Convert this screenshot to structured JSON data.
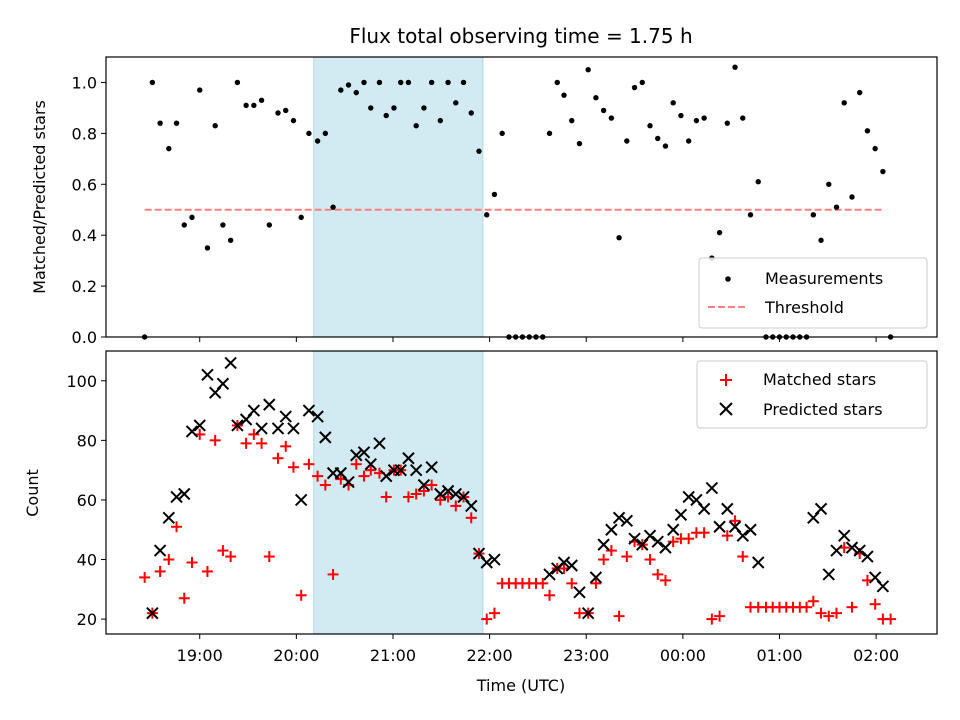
{
  "chart_data": {
    "type": "scatter",
    "title": "Flux total observing time = 1.75 h",
    "xlabel": "Time (UTC)",
    "x_ticks": [
      "19:00",
      "20:00",
      "21:00",
      "22:00",
      "23:00",
      "00:00",
      "01:00",
      "02:00"
    ],
    "x_tick_hours": [
      19,
      20,
      21,
      22,
      23,
      24,
      25,
      26
    ],
    "x_range_hours": [
      18.03,
      26.63
    ],
    "observing_window_hours": [
      20.18,
      21.93
    ],
    "colors": {
      "measurement": "#000000",
      "threshold": "#ff7f7f",
      "matched": "#ff0000",
      "predicted": "#000000",
      "window": "#add8e6"
    },
    "top": {
      "ylabel": "Matched/Predicted stars",
      "ylim": [
        0,
        1.1
      ],
      "yticks": [
        "0.0",
        "0.2",
        "0.4",
        "0.6",
        "0.8",
        "1.0"
      ],
      "ytick_values": [
        0,
        0.2,
        0.4,
        0.6,
        0.8,
        1.0
      ],
      "threshold": 0.5,
      "threshold_x": [
        18.43,
        26.09
      ],
      "legend": {
        "measurements": "Measurements",
        "threshold": "Threshold"
      },
      "points": [
        [
          18.43,
          0.0
        ],
        [
          18.51,
          1.0
        ],
        [
          18.59,
          0.84
        ],
        [
          18.68,
          0.74
        ],
        [
          18.76,
          0.84
        ],
        [
          18.84,
          0.44
        ],
        [
          18.92,
          0.47
        ],
        [
          19.0,
          0.97
        ],
        [
          19.08,
          0.35
        ],
        [
          19.16,
          0.83
        ],
        [
          19.24,
          0.44
        ],
        [
          19.32,
          0.38
        ],
        [
          19.39,
          1.0
        ],
        [
          19.48,
          0.91
        ],
        [
          19.56,
          0.91
        ],
        [
          19.64,
          0.93
        ],
        [
          19.72,
          0.44
        ],
        [
          19.81,
          0.88
        ],
        [
          19.89,
          0.89
        ],
        [
          19.97,
          0.85
        ],
        [
          20.05,
          0.47
        ],
        [
          20.13,
          0.8
        ],
        [
          20.22,
          0.77
        ],
        [
          20.3,
          0.8
        ],
        [
          20.38,
          0.51
        ],
        [
          20.46,
          0.97
        ],
        [
          20.54,
          0.99
        ],
        [
          20.62,
          0.96
        ],
        [
          20.7,
          1.0
        ],
        [
          20.77,
          0.9
        ],
        [
          20.86,
          1.0
        ],
        [
          20.93,
          0.87
        ],
        [
          21.01,
          0.9
        ],
        [
          21.08,
          1.0
        ],
        [
          21.16,
          1.0
        ],
        [
          21.24,
          0.83
        ],
        [
          21.32,
          0.9
        ],
        [
          21.4,
          1.0
        ],
        [
          21.49,
          0.85
        ],
        [
          21.57,
          1.0
        ],
        [
          21.65,
          0.92
        ],
        [
          21.73,
          1.0
        ],
        [
          21.81,
          0.88
        ],
        [
          21.89,
          0.73
        ],
        [
          21.97,
          0.48
        ],
        [
          22.05,
          0.56
        ],
        [
          22.13,
          0.8
        ],
        [
          22.2,
          0.0
        ],
        [
          22.27,
          0.0
        ],
        [
          22.34,
          0.0
        ],
        [
          22.41,
          0.0
        ],
        [
          22.48,
          0.0
        ],
        [
          22.55,
          0.0
        ],
        [
          22.62,
          0.8
        ],
        [
          22.7,
          1.0
        ],
        [
          22.77,
          0.95
        ],
        [
          22.85,
          0.85
        ],
        [
          22.93,
          0.76
        ],
        [
          23.02,
          1.05
        ],
        [
          23.1,
          0.94
        ],
        [
          23.18,
          0.89
        ],
        [
          23.26,
          0.86
        ],
        [
          23.34,
          0.39
        ],
        [
          23.42,
          0.77
        ],
        [
          23.5,
          0.98
        ],
        [
          23.58,
          1.0
        ],
        [
          23.66,
          0.83
        ],
        [
          23.74,
          0.78
        ],
        [
          23.82,
          0.75
        ],
        [
          23.9,
          0.92
        ],
        [
          23.98,
          0.87
        ],
        [
          24.06,
          0.77
        ],
        [
          24.14,
          0.85
        ],
        [
          24.22,
          0.86
        ],
        [
          24.3,
          0.31
        ],
        [
          24.38,
          0.41
        ],
        [
          24.46,
          0.84
        ],
        [
          24.54,
          1.06
        ],
        [
          24.62,
          0.86
        ],
        [
          24.7,
          0.48
        ],
        [
          24.78,
          0.61
        ],
        [
          24.86,
          0.0
        ],
        [
          24.93,
          0.0
        ],
        [
          25.0,
          0.0
        ],
        [
          25.07,
          0.0
        ],
        [
          25.14,
          0.0
        ],
        [
          25.21,
          0.0
        ],
        [
          25.28,
          0.0
        ],
        [
          25.35,
          0.48
        ],
        [
          25.43,
          0.38
        ],
        [
          25.51,
          0.6
        ],
        [
          25.59,
          0.51
        ],
        [
          25.67,
          0.92
        ],
        [
          25.75,
          0.55
        ],
        [
          25.83,
          0.96
        ],
        [
          25.91,
          0.81
        ],
        [
          25.99,
          0.74
        ],
        [
          26.07,
          0.65
        ],
        [
          26.15,
          0.0
        ]
      ]
    },
    "bottom": {
      "ylabel": "Count",
      "ylim": [
        15,
        110
      ],
      "yticks": [
        "20",
        "40",
        "60",
        "80",
        "100"
      ],
      "ytick_values": [
        20,
        40,
        60,
        80,
        100
      ],
      "legend": {
        "matched": "Matched stars",
        "predicted": "Predicted stars"
      },
      "matched": [
        [
          18.43,
          34
        ],
        [
          18.51,
          22
        ],
        [
          18.59,
          36
        ],
        [
          18.68,
          40
        ],
        [
          18.76,
          51
        ],
        [
          18.84,
          27
        ],
        [
          18.92,
          39
        ],
        [
          19.0,
          82
        ],
        [
          19.08,
          36
        ],
        [
          19.16,
          80
        ],
        [
          19.24,
          43
        ],
        [
          19.32,
          41
        ],
        [
          19.39,
          85
        ],
        [
          19.48,
          79
        ],
        [
          19.56,
          82
        ],
        [
          19.64,
          79
        ],
        [
          19.72,
          41
        ],
        [
          19.81,
          74
        ],
        [
          19.89,
          78
        ],
        [
          19.97,
          71
        ],
        [
          20.05,
          28
        ],
        [
          20.13,
          72
        ],
        [
          20.22,
          68
        ],
        [
          20.3,
          65
        ],
        [
          20.38,
          35
        ],
        [
          20.46,
          67
        ],
        [
          20.54,
          65
        ],
        [
          20.62,
          72
        ],
        [
          20.7,
          68
        ],
        [
          20.77,
          70
        ],
        [
          20.86,
          69
        ],
        [
          20.93,
          61
        ],
        [
          21.01,
          70
        ],
        [
          21.08,
          70
        ],
        [
          21.16,
          61
        ],
        [
          21.24,
          62
        ],
        [
          21.32,
          63
        ],
        [
          21.4,
          65
        ],
        [
          21.49,
          60
        ],
        [
          21.57,
          61
        ],
        [
          21.65,
          58
        ],
        [
          21.73,
          61
        ],
        [
          21.81,
          54
        ],
        [
          21.89,
          42
        ],
        [
          21.97,
          20
        ],
        [
          22.05,
          22
        ],
        [
          22.13,
          32
        ],
        [
          22.2,
          32
        ],
        [
          22.27,
          32
        ],
        [
          22.34,
          32
        ],
        [
          22.41,
          32
        ],
        [
          22.48,
          32
        ],
        [
          22.55,
          32
        ],
        [
          22.62,
          28
        ],
        [
          22.7,
          37
        ],
        [
          22.77,
          37
        ],
        [
          22.85,
          32
        ],
        [
          22.93,
          22
        ],
        [
          23.02,
          22
        ],
        [
          23.1,
          32
        ],
        [
          23.18,
          40
        ],
        [
          23.26,
          43
        ],
        [
          23.34,
          21
        ],
        [
          23.42,
          41
        ],
        [
          23.5,
          46
        ],
        [
          23.58,
          45
        ],
        [
          23.66,
          40
        ],
        [
          23.74,
          35
        ],
        [
          23.82,
          33
        ],
        [
          23.9,
          46
        ],
        [
          23.98,
          47
        ],
        [
          24.06,
          47
        ],
        [
          24.14,
          49
        ],
        [
          24.22,
          49
        ],
        [
          24.3,
          20
        ],
        [
          24.38,
          21
        ],
        [
          24.46,
          48
        ],
        [
          24.54,
          53
        ],
        [
          24.62,
          41
        ],
        [
          24.7,
          24
        ],
        [
          24.78,
          24
        ],
        [
          24.86,
          24
        ],
        [
          24.93,
          24
        ],
        [
          25.0,
          24
        ],
        [
          25.07,
          24
        ],
        [
          25.14,
          24
        ],
        [
          25.21,
          24
        ],
        [
          25.28,
          24
        ],
        [
          25.35,
          26
        ],
        [
          25.43,
          22
        ],
        [
          25.51,
          21
        ],
        [
          25.59,
          22
        ],
        [
          25.67,
          44
        ],
        [
          25.75,
          24
        ],
        [
          25.83,
          42
        ],
        [
          25.91,
          33
        ],
        [
          25.99,
          25
        ],
        [
          26.07,
          20
        ],
        [
          26.15,
          20
        ]
      ],
      "predicted": [
        [
          18.51,
          22
        ],
        [
          18.59,
          43
        ],
        [
          18.68,
          54
        ],
        [
          18.76,
          61
        ],
        [
          18.84,
          62
        ],
        [
          18.92,
          83
        ],
        [
          19.0,
          85
        ],
        [
          19.08,
          102
        ],
        [
          19.16,
          96
        ],
        [
          19.24,
          99
        ],
        [
          19.32,
          106
        ],
        [
          19.39,
          85
        ],
        [
          19.48,
          87
        ],
        [
          19.56,
          90
        ],
        [
          19.64,
          84
        ],
        [
          19.72,
          92
        ],
        [
          19.81,
          84
        ],
        [
          19.89,
          88
        ],
        [
          19.97,
          84
        ],
        [
          20.05,
          60
        ],
        [
          20.13,
          90
        ],
        [
          20.22,
          88
        ],
        [
          20.3,
          81
        ],
        [
          20.38,
          69
        ],
        [
          20.46,
          69
        ],
        [
          20.54,
          66
        ],
        [
          20.62,
          75
        ],
        [
          20.7,
          76
        ],
        [
          20.77,
          72
        ],
        [
          20.86,
          79
        ],
        [
          20.93,
          68
        ],
        [
          21.01,
          70
        ],
        [
          21.08,
          70
        ],
        [
          21.16,
          74
        ],
        [
          21.24,
          70
        ],
        [
          21.32,
          65
        ],
        [
          21.4,
          71
        ],
        [
          21.49,
          62
        ],
        [
          21.57,
          63
        ],
        [
          21.65,
          62
        ],
        [
          21.73,
          61
        ],
        [
          21.81,
          58
        ],
        [
          21.89,
          42
        ],
        [
          21.97,
          39
        ],
        [
          22.05,
          40
        ],
        [
          22.62,
          35
        ],
        [
          22.7,
          37
        ],
        [
          22.77,
          39
        ],
        [
          22.85,
          38
        ],
        [
          22.93,
          29
        ],
        [
          23.02,
          22
        ],
        [
          23.1,
          34
        ],
        [
          23.18,
          45
        ],
        [
          23.26,
          50
        ],
        [
          23.34,
          54
        ],
        [
          23.42,
          53
        ],
        [
          23.5,
          47
        ],
        [
          23.58,
          45
        ],
        [
          23.66,
          48
        ],
        [
          23.74,
          46
        ],
        [
          23.82,
          44
        ],
        [
          23.9,
          50
        ],
        [
          23.98,
          55
        ],
        [
          24.06,
          61
        ],
        [
          24.14,
          60
        ],
        [
          24.22,
          57
        ],
        [
          24.3,
          64
        ],
        [
          24.38,
          51
        ],
        [
          24.46,
          57
        ],
        [
          24.54,
          51
        ],
        [
          24.62,
          48
        ],
        [
          24.7,
          50
        ],
        [
          24.78,
          39
        ],
        [
          25.35,
          54
        ],
        [
          25.43,
          57
        ],
        [
          25.51,
          35
        ],
        [
          25.59,
          43
        ],
        [
          25.67,
          48
        ],
        [
          25.75,
          44
        ],
        [
          25.83,
          43
        ],
        [
          25.91,
          41
        ],
        [
          25.99,
          34
        ],
        [
          26.07,
          31
        ]
      ]
    }
  }
}
